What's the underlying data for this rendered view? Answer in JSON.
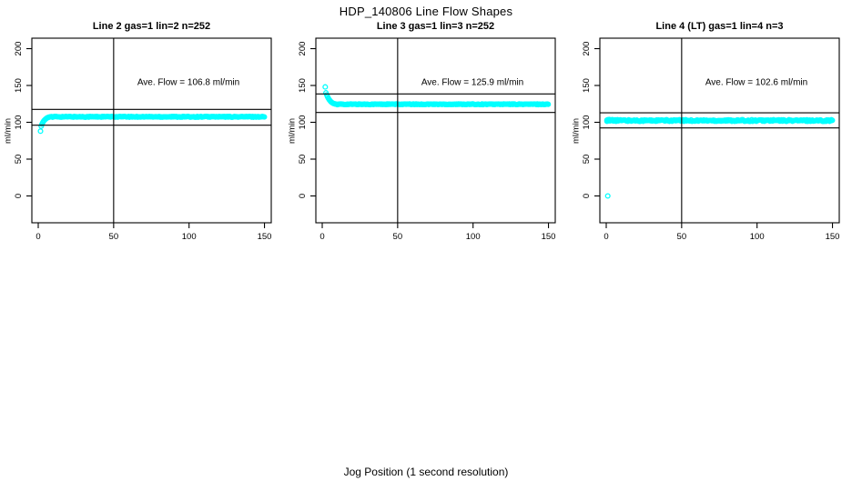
{
  "figure": {
    "title": "HDP_140806  Line Flow Shapes",
    "xlabel": "Jog Position (1 second resolution)",
    "background": "#ffffff",
    "axis_color": "#000000"
  },
  "chart_data": [
    {
      "type": "scatter",
      "title": "Line 2 gas=1 lin=2 n=252",
      "annotation": "Ave. Flow =  106.8  ml/min",
      "ave_flow": 106.8,
      "n": 252,
      "ylabel": "ml/min",
      "x_ticks": [
        0,
        50,
        100,
        150
      ],
      "y_ticks": [
        0,
        50,
        100,
        150,
        200
      ],
      "xlim": [
        -5,
        157
      ],
      "ylim": [
        -35,
        214
      ],
      "grid": false,
      "ref_line_x": 50,
      "ref_lines_y": [
        117.5,
        96.1
      ],
      "marker": "open-circle",
      "marker_color": "#00FFFF",
      "points": [
        [
          1.5,
          88
        ],
        [
          2,
          94.8
        ],
        [
          2.5,
          97.5
        ],
        [
          3,
          99.6
        ],
        [
          3.5,
          101.3
        ],
        [
          4,
          102.6
        ],
        [
          4.5,
          103.7
        ],
        [
          5,
          104.6
        ],
        [
          5.5,
          105.4
        ],
        [
          6,
          106.0
        ],
        [
          6.5,
          106.5
        ],
        [
          7,
          106.9
        ],
        [
          7.5,
          107.2
        ],
        [
          8,
          107.4
        ],
        [
          8.5,
          107.6
        ],
        [
          9,
          107.7
        ]
      ],
      "steady_band": {
        "x_from": 9.5,
        "x_to": 150,
        "step": 0.6,
        "value": 107.5,
        "jitter": 0.55
      }
    },
    {
      "type": "scatter",
      "title": "Line 3 gas=1 lin=3 n=252",
      "annotation": "Ave. Flow =  125.9  ml/min",
      "ave_flow": 125.9,
      "n": 252,
      "ylabel": "ml/min",
      "x_ticks": [
        0,
        50,
        100,
        150
      ],
      "y_ticks": [
        0,
        50,
        100,
        150,
        200
      ],
      "xlim": [
        -5,
        157
      ],
      "ylim": [
        -35,
        214
      ],
      "grid": false,
      "ref_line_x": 50,
      "ref_lines_y": [
        138.5,
        113.3
      ],
      "marker": "open-circle",
      "marker_color": "#00FFFF",
      "points": [
        [
          2,
          148
        ],
        [
          2.5,
          140
        ],
        [
          3,
          137.2
        ],
        [
          3.5,
          134.8
        ],
        [
          4,
          132.8
        ],
        [
          4.5,
          131.1
        ],
        [
          5,
          129.7
        ],
        [
          5.5,
          128.5
        ],
        [
          6,
          127.5
        ],
        [
          6.5,
          126.7
        ],
        [
          7,
          126.1
        ],
        [
          7.5,
          125.6
        ],
        [
          8,
          125.2
        ],
        [
          8.5,
          124.9
        ],
        [
          9,
          124.7
        ],
        [
          9.5,
          124.6
        ]
      ],
      "steady_band": {
        "x_from": 10,
        "x_to": 150,
        "step": 0.6,
        "value": 124.5,
        "jitter": 0.5
      }
    },
    {
      "type": "scatter",
      "title": "Line 4 (LT) gas=1 lin=4 n=3",
      "annotation": "Ave. Flow =  102.6  ml/min",
      "ave_flow": 102.6,
      "n": 3,
      "ylabel": "ml/min",
      "x_ticks": [
        0,
        50,
        100,
        150
      ],
      "y_ticks": [
        0,
        50,
        100,
        150,
        200
      ],
      "xlim": [
        -5,
        157
      ],
      "ylim": [
        -35,
        214
      ],
      "grid": false,
      "ref_line_x": 50,
      "ref_lines_y": [
        112.9,
        92.3
      ],
      "marker": "open-circle",
      "marker_color": "#00FFFF",
      "points": [
        [
          1,
          0
        ],
        [
          0.5,
          102.8
        ],
        [
          1,
          103.4
        ],
        [
          1.5,
          102.2
        ],
        [
          2,
          103.8
        ],
        [
          2.5,
          101.9
        ],
        [
          3,
          103.1
        ],
        [
          3.5,
          102.5
        ],
        [
          4,
          103.6
        ],
        [
          4.5,
          101.8
        ],
        [
          5,
          103.0
        ],
        [
          5.5,
          102.3
        ],
        [
          6,
          103.3
        ],
        [
          6.5,
          102.0
        ],
        [
          7,
          102.9
        ],
        [
          7.5,
          103.5
        ],
        [
          8,
          102.1
        ]
      ],
      "steady_band": {
        "x_from": 0.5,
        "x_to": 150,
        "step": 0.6,
        "value": 102.4,
        "jitter": 1.1
      }
    }
  ]
}
